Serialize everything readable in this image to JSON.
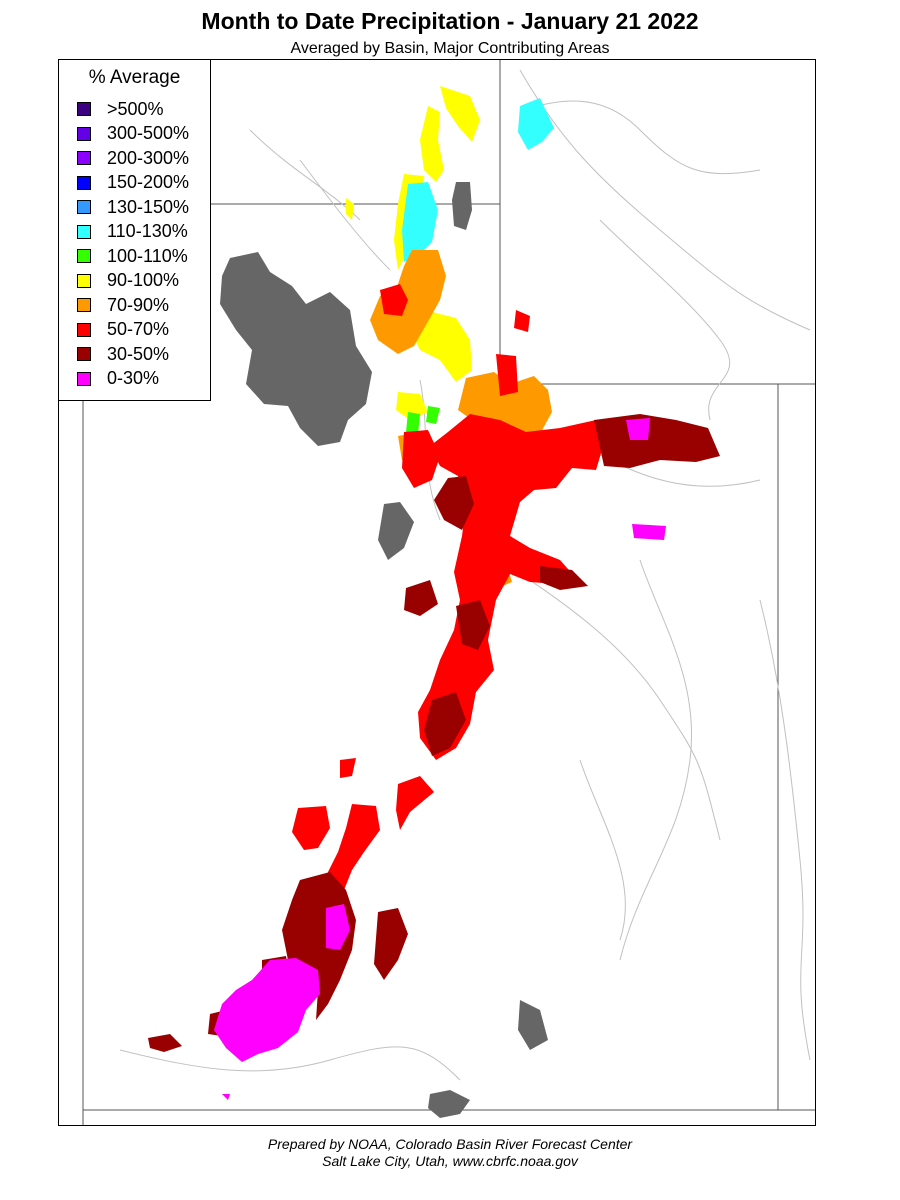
{
  "header": {
    "title": "Month to Date Precipitation - January 21 2022",
    "subtitle": "Averaged by Basin, Major Contributing Areas"
  },
  "legend": {
    "title": "% Average",
    "items": [
      {
        "label": ">500%",
        "color": "#3d0080"
      },
      {
        "label": "300-500%",
        "color": "#6400e6"
      },
      {
        "label": "200-300%",
        "color": "#8c00ff"
      },
      {
        "label": "150-200%",
        "color": "#0000ff"
      },
      {
        "label": "130-150%",
        "color": "#3399ff"
      },
      {
        "label": "110-130%",
        "color": "#33ffff"
      },
      {
        "label": "100-110%",
        "color": "#33ff00"
      },
      {
        "label": "90-100%",
        "color": "#ffff00"
      },
      {
        "label": "70-90%",
        "color": "#ff9900"
      },
      {
        "label": "50-70%",
        "color": "#ff0000"
      },
      {
        "label": "30-50%",
        "color": "#990000"
      },
      {
        "label": "0-30%",
        "color": "#ff00ff"
      }
    ]
  },
  "colors": {
    "lake": "#666666",
    "river": "#c0c0c0",
    "border": "#555555"
  },
  "footer": {
    "line1": "Prepared by NOAA, Colorado Basin River Forecast Center",
    "line2": "Salt Lake City, Utah, www.cbrfc.noaa.gov"
  }
}
